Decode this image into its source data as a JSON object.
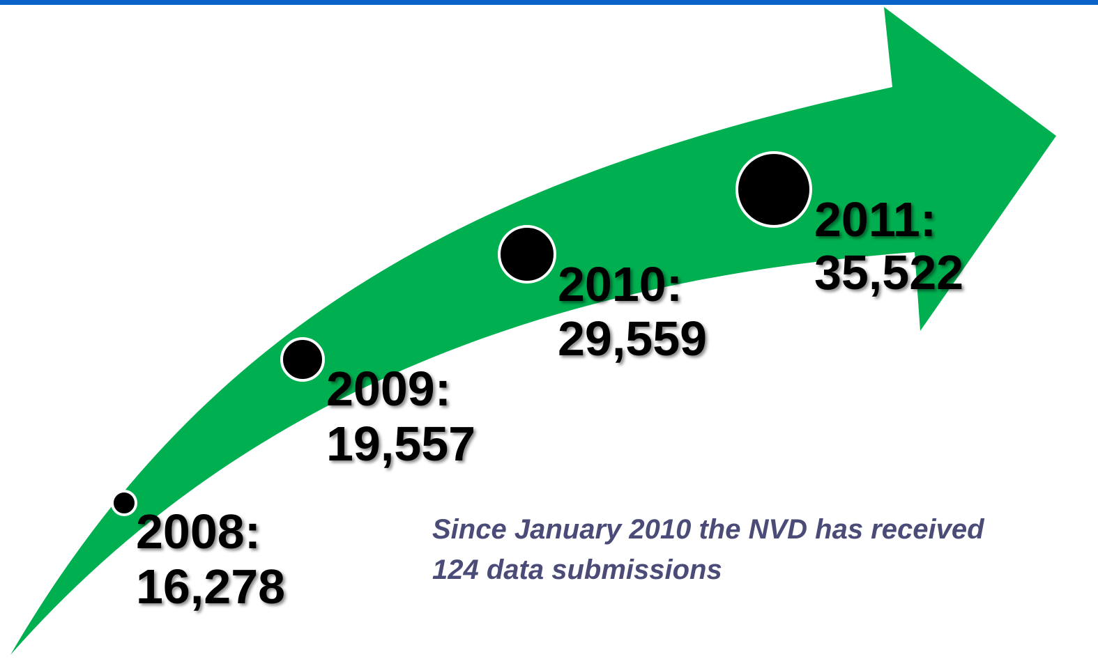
{
  "milestones": [
    {
      "year": "2008:",
      "count": "16,278"
    },
    {
      "year": "2009:",
      "count": "19,557"
    },
    {
      "year": "2010:",
      "count": "29,559"
    },
    {
      "year": "2011:",
      "count": "35,522"
    }
  ],
  "note": {
    "lines": [
      "Since January 2010 the NVD has received",
      "124 data submissions"
    ]
  }
}
